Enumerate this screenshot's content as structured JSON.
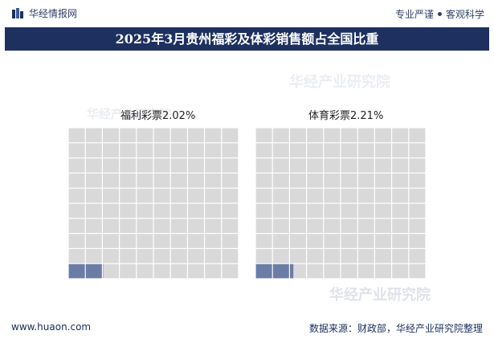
{
  "header": {
    "logo_text": "华经情报网",
    "slogan_left": "专业严谨",
    "slogan_right": "客观科学"
  },
  "title": "2025年3月贵州福彩及体彩销售额占全国比重",
  "watermark": "华经产业研究院",
  "colors": {
    "title_band": "#1d3060",
    "empty_cell": "#d9d9d9",
    "filled_cell": "#6b7da6",
    "text_dark": "#1d3060"
  },
  "chart_data": {
    "type": "waffle",
    "cells_per_chart": 100,
    "grid_rows": 10,
    "grid_cols": 10,
    "panels": [
      {
        "name": "福利彩票",
        "value": 2.02,
        "label": "福利彩票2.02%"
      },
      {
        "name": "体育彩票",
        "value": 2.21,
        "label": "体育彩票2.21%"
      }
    ]
  },
  "footer": {
    "website": "www.huaon.com",
    "source": "数据来源：财政部，华经产业研究院整理"
  }
}
